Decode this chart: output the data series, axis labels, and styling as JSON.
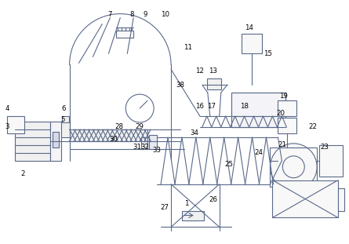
{
  "bg_color": "#ffffff",
  "line_color": "#5a6a8a",
  "lw": 0.8,
  "fig_w": 4.45,
  "fig_h": 3.11
}
